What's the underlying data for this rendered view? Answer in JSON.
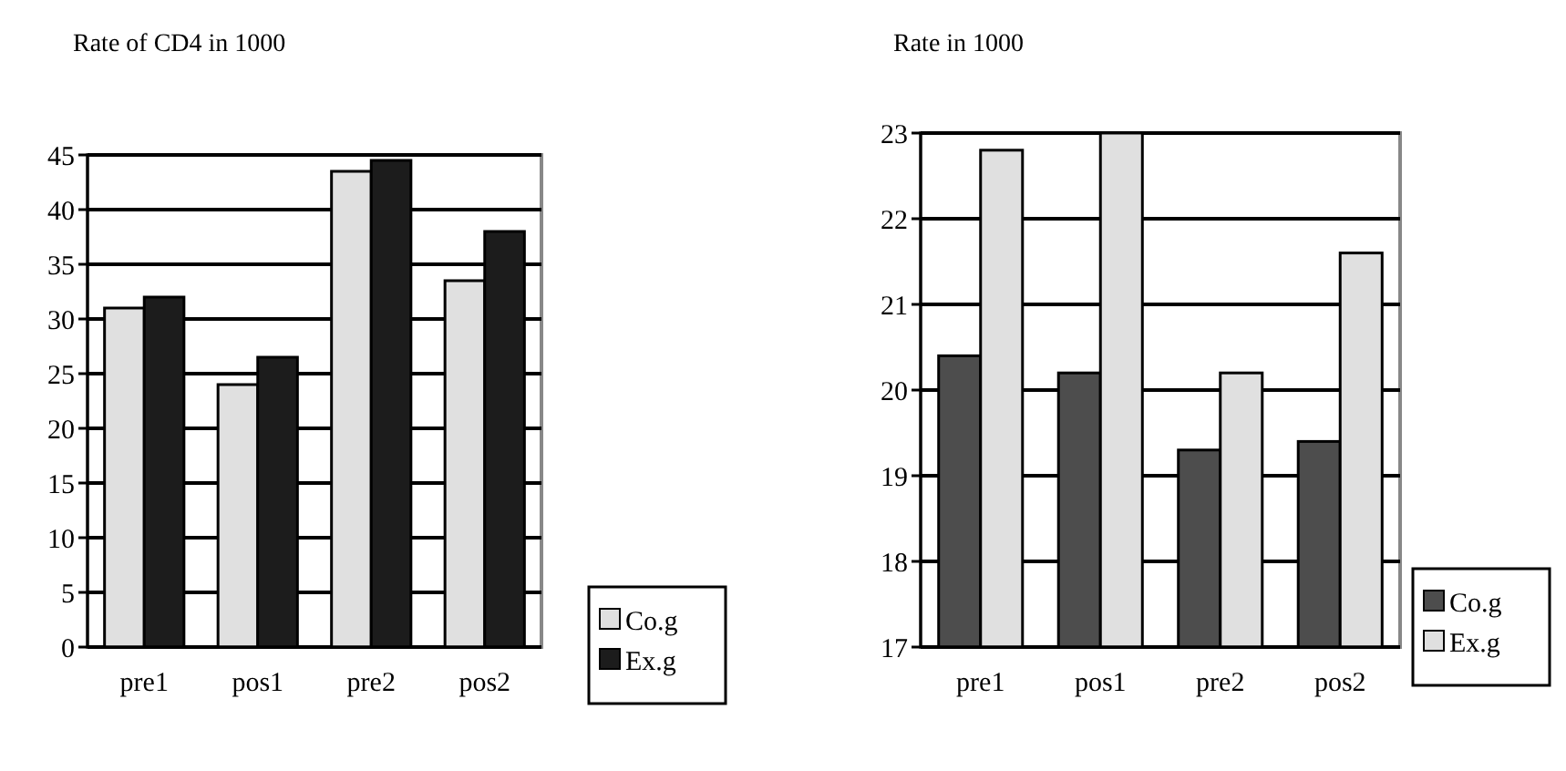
{
  "chart_data": [
    {
      "type": "bar",
      "title": "Rate of CD4 in 1000",
      "categories": [
        "pre1",
        "pos1",
        "pre2",
        "pos2"
      ],
      "series": [
        {
          "name": "Co.g",
          "color": "#e0e0e0",
          "values": [
            31,
            24,
            43.5,
            33.5
          ]
        },
        {
          "name": "Ex.g",
          "color": "#1c1c1c",
          "values": [
            32,
            26.5,
            44.5,
            38
          ]
        }
      ],
      "ylim": [
        0,
        45
      ],
      "yticks": [
        0,
        5,
        10,
        15,
        20,
        25,
        30,
        35,
        40,
        45
      ],
      "grid": "y",
      "legend": "right"
    },
    {
      "type": "bar",
      "title": "Rate in 1000",
      "categories": [
        "pre1",
        "pos1",
        "pre2",
        "pos2"
      ],
      "series": [
        {
          "name": "Co.g",
          "color": "#4d4d4d",
          "values": [
            20.4,
            20.2,
            19.3,
            19.4
          ]
        },
        {
          "name": "Ex.g",
          "color": "#e0e0e0",
          "values": [
            22.8,
            23,
            20.2,
            21.6
          ]
        }
      ],
      "ylim": [
        17,
        23
      ],
      "yticks": [
        17,
        18,
        19,
        20,
        21,
        22,
        23
      ],
      "grid": "y",
      "legend": "right"
    }
  ]
}
